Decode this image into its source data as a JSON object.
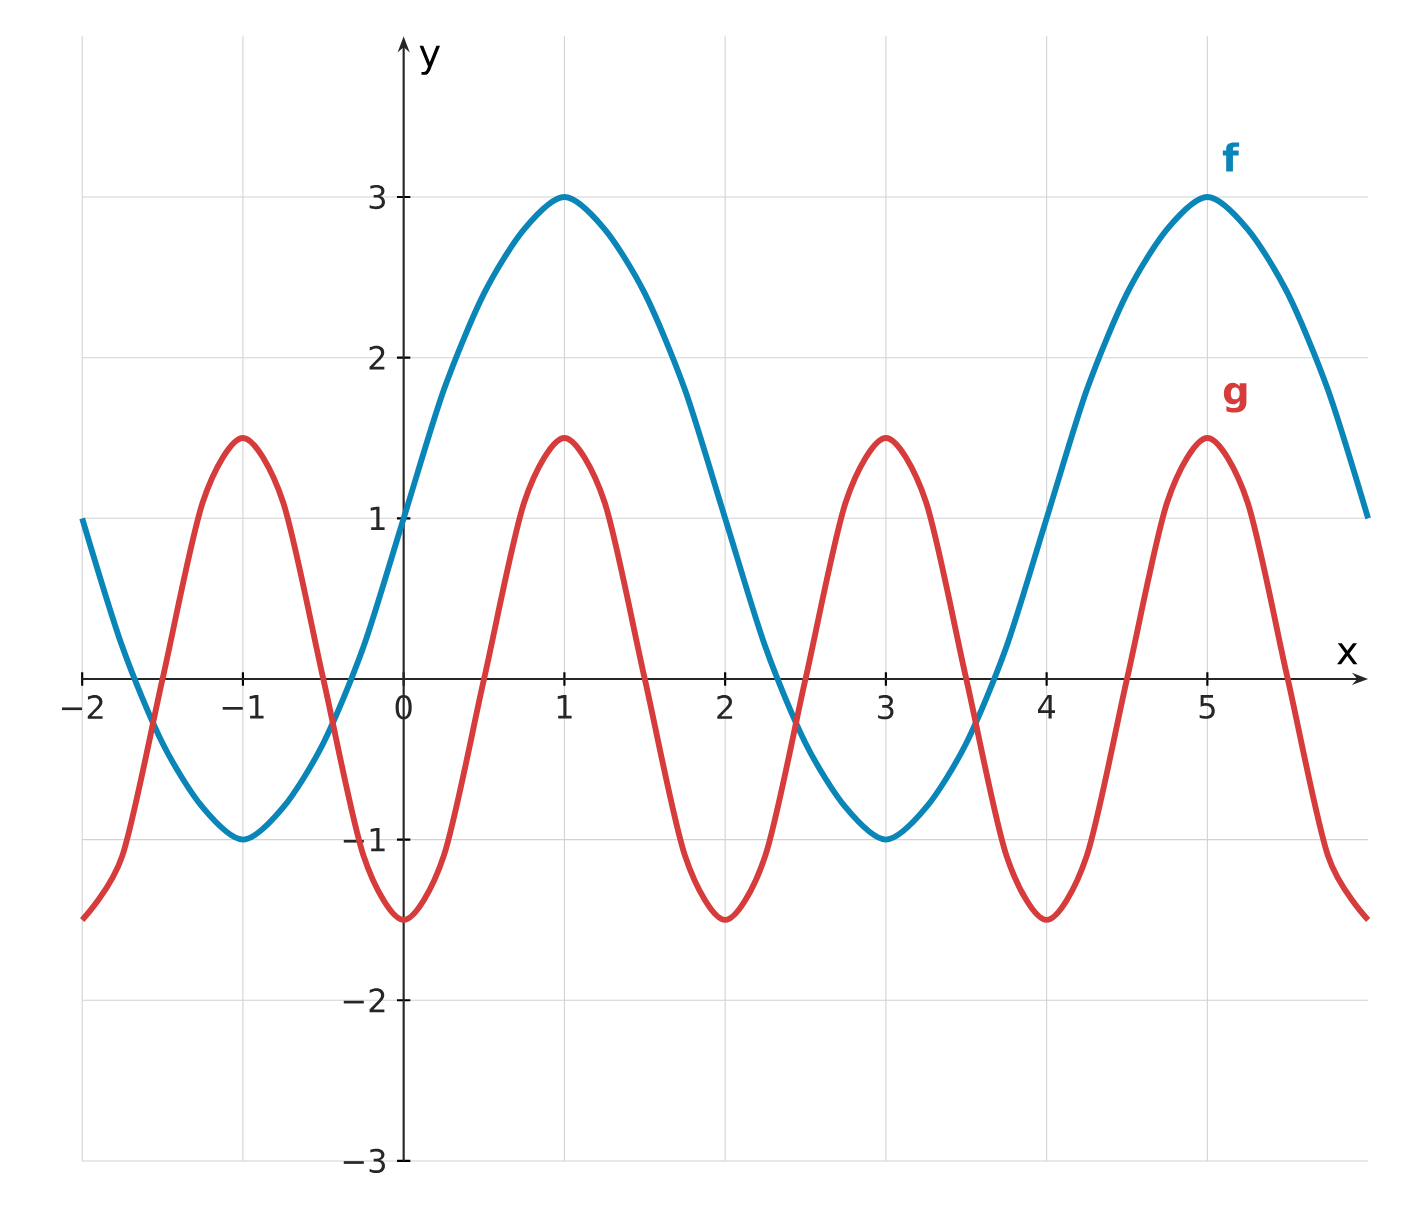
{
  "chart_data": {
    "type": "line",
    "xlabel": "x",
    "ylabel": "y",
    "x": [
      -2,
      -1.75,
      -1.5,
      -1.25,
      -1,
      -0.75,
      -0.5,
      -0.25,
      0,
      0.25,
      0.5,
      0.75,
      1,
      1.25,
      1.5,
      1.75,
      2,
      2.25,
      2.5,
      2.75,
      3,
      3.25,
      3.5,
      3.75,
      4,
      4.25,
      4.5,
      4.75,
      5,
      5.25,
      5.5,
      5.75,
      6
    ],
    "series": [
      {
        "name": "f",
        "color": "#0a85b8",
        "values": [
          1,
          0.2,
          -0.4,
          -0.8,
          -1,
          -0.8,
          -0.4,
          0.2,
          1,
          1.8,
          2.4,
          2.8,
          3,
          2.8,
          2.4,
          1.8,
          1,
          0.2,
          -0.4,
          -0.8,
          -1,
          -0.8,
          -0.4,
          0.2,
          1,
          1.8,
          2.4,
          2.8,
          3,
          2.8,
          2.4,
          1.8,
          1
        ]
      },
      {
        "name": "g",
        "color": "#d63c3c",
        "values": [
          -1.5,
          -1.1,
          0,
          1.1,
          1.5,
          1.1,
          0,
          -1.1,
          -1.5,
          -1.1,
          0,
          1.1,
          1.5,
          1.1,
          0,
          -1.1,
          -1.5,
          -1.1,
          0,
          1.1,
          1.5,
          1.1,
          0,
          -1.1,
          -1.5,
          -1.1,
          0,
          1.1,
          1.5,
          1.1,
          0,
          -1.1,
          -1.5
        ]
      }
    ],
    "xlim": [
      -2,
      6
    ],
    "ylim": [
      -3,
      4
    ],
    "xticks": [
      {
        "value": -2,
        "label": "−2"
      },
      {
        "value": -1,
        "label": "−1"
      },
      0,
      1,
      2,
      3,
      4,
      5
    ],
    "yticks": [
      {
        "value": -3,
        "label": "−3"
      },
      {
        "value": -2,
        "label": "−2"
      },
      {
        "value": -1,
        "label": "−1"
      },
      1,
      2,
      3
    ],
    "grid": true,
    "legend": false,
    "marker": "none",
    "line_style": "solid"
  }
}
